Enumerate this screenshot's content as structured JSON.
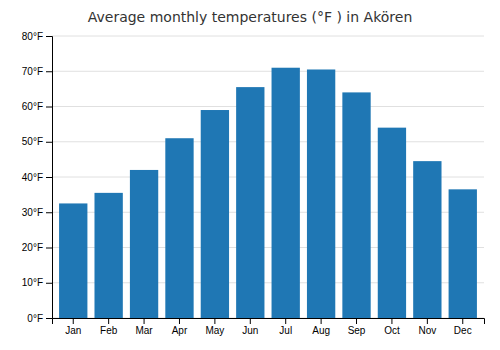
{
  "chart_data": {
    "type": "bar",
    "title": "Average monthly temperatures (°F ) in Akören",
    "categories": [
      "Jan",
      "Feb",
      "Mar",
      "Apr",
      "May",
      "Jun",
      "Jul",
      "Aug",
      "Sep",
      "Oct",
      "Nov",
      "Dec"
    ],
    "values": [
      32.5,
      35.5,
      42.0,
      51.0,
      59.0,
      65.5,
      71.0,
      70.5,
      64.0,
      54.0,
      44.5,
      36.5
    ],
    "ylim": [
      0,
      80
    ],
    "yticks": [
      {
        "value": 0,
        "label": "0°F"
      },
      {
        "value": 10,
        "label": "10°F"
      },
      {
        "value": 20,
        "label": "20°F"
      },
      {
        "value": 30,
        "label": "30°F"
      },
      {
        "value": 40,
        "label": "40°F"
      },
      {
        "value": 50,
        "label": "50°F"
      },
      {
        "value": 60,
        "label": "60°F"
      },
      {
        "value": 70,
        "label": "70°F"
      },
      {
        "value": 80,
        "label": "80°F"
      }
    ],
    "grid": true
  }
}
